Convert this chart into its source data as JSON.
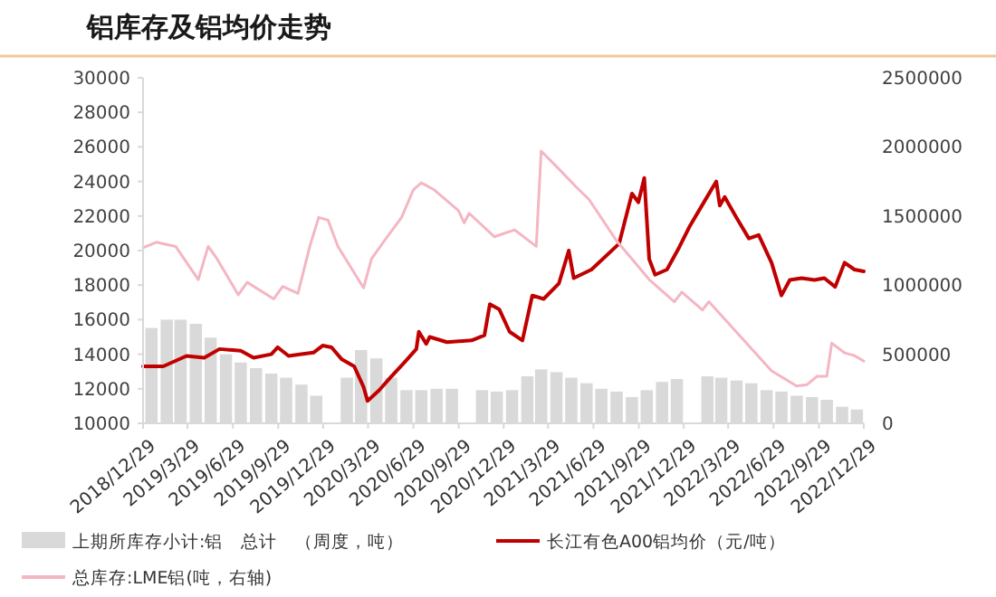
{
  "chart_data": {
    "type": "line",
    "title": "铝库存及铝均价走势",
    "xlim": [
      "2018-12-29",
      "2022-12-29"
    ],
    "xticks": [
      {
        "value": "2018-12-29",
        "label": "2018/12/29"
      },
      {
        "value": "2019-03-29",
        "label": "2019/3/29"
      },
      {
        "value": "2019-06-29",
        "label": "2019/6/29"
      },
      {
        "value": "2019-09-29",
        "label": "2019/9/29"
      },
      {
        "value": "2019-12-29",
        "label": "2019/12/29"
      },
      {
        "value": "2020-03-29",
        "label": "2020/3/29"
      },
      {
        "value": "2020-06-29",
        "label": "2020/6/29"
      },
      {
        "value": "2020-09-29",
        "label": "2020/9/29"
      },
      {
        "value": "2020-12-29",
        "label": "2020/12/29"
      },
      {
        "value": "2021-03-29",
        "label": "2021/3/29"
      },
      {
        "value": "2021-06-29",
        "label": "2021/6/29"
      },
      {
        "value": "2021-09-29",
        "label": "2021/9/29"
      },
      {
        "value": "2021-12-29",
        "label": "2021/12/29"
      },
      {
        "value": "2022-03-29",
        "label": "2022/3/29"
      },
      {
        "value": "2022-06-29",
        "label": "2022/6/29"
      },
      {
        "value": "2022-09-29",
        "label": "2022/9/29"
      },
      {
        "value": "2022-12-29",
        "label": "2022/12/29"
      }
    ],
    "ylim": [
      10000,
      30000
    ],
    "yticks": [
      10000,
      12000,
      14000,
      16000,
      18000,
      20000,
      22000,
      24000,
      26000,
      28000,
      30000
    ],
    "y2lim": [
      0,
      2500000
    ],
    "y2ticks": [
      0,
      500000,
      1000000,
      1500000,
      2000000,
      2500000
    ],
    "grid": false,
    "legend": "bottom",
    "series": [
      {
        "name": "上期所库存小计:铝　总计　（周度，吨）",
        "type": "bar",
        "axis": "y2",
        "color": "#d9d9d9",
        "x": [
          "2019-01-15",
          "2019-02-15",
          "2019-03-15",
          "2019-04-15",
          "2019-05-15",
          "2019-06-15",
          "2019-07-15",
          "2019-08-15",
          "2019-09-15",
          "2019-10-15",
          "2019-11-15",
          "2019-12-15",
          "2020-01-15",
          "2020-02-15",
          "2020-03-15",
          "2020-04-15",
          "2020-05-15",
          "2020-06-15",
          "2020-07-15",
          "2020-08-15",
          "2020-09-15",
          "2020-10-15",
          "2020-11-15",
          "2020-12-15",
          "2021-01-15",
          "2021-02-15",
          "2021-03-15",
          "2021-04-15",
          "2021-05-15",
          "2021-06-15",
          "2021-07-15",
          "2021-08-15",
          "2021-09-15",
          "2021-10-15",
          "2021-11-15",
          "2021-12-15",
          "2022-01-15",
          "2022-02-15",
          "2022-03-15",
          "2022-04-15",
          "2022-05-15",
          "2022-06-15",
          "2022-07-15",
          "2022-08-15",
          "2022-09-15",
          "2022-10-15",
          "2022-11-15",
          "2022-12-15"
        ],
        "values": [
          690000,
          750000,
          750000,
          720000,
          620000,
          500000,
          440000,
          400000,
          360000,
          330000,
          280000,
          200000,
          null,
          330000,
          530000,
          470000,
          330000,
          240000,
          240000,
          250000,
          250000,
          null,
          240000,
          230000,
          240000,
          340000,
          390000,
          370000,
          330000,
          290000,
          250000,
          230000,
          190000,
          240000,
          300000,
          320000,
          null,
          340000,
          330000,
          310000,
          290000,
          240000,
          230000,
          200000,
          190000,
          170000,
          120000,
          100000
        ]
      },
      {
        "name": "长江有色A00铝均价（元/吨）",
        "color": "#c00000",
        "x": [
          "2018-12-29",
          "2019-02-08",
          "2019-03-27",
          "2019-05-02",
          "2019-06-02",
          "2019-07-15",
          "2019-08-10",
          "2019-09-15",
          "2019-09-28",
          "2019-10-20",
          "2019-11-15",
          "2019-12-10",
          "2019-12-28",
          "2020-01-15",
          "2020-02-05",
          "2020-03-01",
          "2020-03-20",
          "2020-03-28",
          "2020-04-20",
          "2020-05-15",
          "2020-06-10",
          "2020-07-05",
          "2020-07-10",
          "2020-07-25",
          "2020-08-01",
          "2020-09-05",
          "2020-10-25",
          "2020-11-20",
          "2020-12-01",
          "2020-12-20",
          "2021-01-10",
          "2021-02-05",
          "2021-02-25",
          "2021-03-20",
          "2021-04-20",
          "2021-05-10",
          "2021-05-20",
          "2021-06-25",
          "2021-08-20",
          "2021-09-15",
          "2021-09-28",
          "2021-10-10",
          "2021-10-20",
          "2021-11-01",
          "2021-11-25",
          "2021-12-20",
          "2022-01-10",
          "2022-02-10",
          "2022-03-05",
          "2022-03-12",
          "2022-03-22",
          "2022-04-15",
          "2022-05-10",
          "2022-05-30",
          "2022-06-25",
          "2022-07-15",
          "2022-08-01",
          "2022-08-25",
          "2022-09-20",
          "2022-10-10",
          "2022-11-01",
          "2022-11-20",
          "2022-12-10",
          "2022-12-29"
        ],
        "values": [
          13300,
          13300,
          13900,
          13800,
          14300,
          14200,
          13800,
          14000,
          14400,
          13900,
          14000,
          14100,
          14500,
          14400,
          13700,
          13300,
          12100,
          11300,
          11900,
          12700,
          13500,
          14300,
          15300,
          14600,
          15000,
          14700,
          14800,
          15100,
          16900,
          16600,
          15300,
          14800,
          17400,
          17200,
          18100,
          20000,
          18400,
          18900,
          20400,
          23300,
          22800,
          24200,
          19500,
          18600,
          18900,
          20200,
          21400,
          22900,
          24000,
          22600,
          23100,
          21900,
          20700,
          20900,
          19300,
          17400,
          18300,
          18400,
          18300,
          18400,
          17900,
          19300,
          18900,
          18800
        ]
      },
      {
        "name": "总库存:LME铝(吨，右轴)",
        "axis": "y2",
        "color": "#f4b6c2",
        "x": [
          "2018-12-29",
          "2019-01-25",
          "2019-03-05",
          "2019-04-20",
          "2019-05-10",
          "2019-05-28",
          "2019-07-10",
          "2019-07-28",
          "2019-09-20",
          "2019-10-08",
          "2019-11-08",
          "2019-12-02",
          "2019-12-20",
          "2020-01-08",
          "2020-01-28",
          "2020-03-20",
          "2020-04-05",
          "2020-05-05",
          "2020-06-05",
          "2020-06-29",
          "2020-07-15",
          "2020-08-10",
          "2020-09-28",
          "2020-10-10",
          "2020-10-20",
          "2020-12-10",
          "2021-01-20",
          "2021-03-05",
          "2021-03-15",
          "2021-04-20",
          "2021-05-25",
          "2021-06-20",
          "2021-08-15",
          "2021-10-20",
          "2021-12-10",
          "2021-12-25",
          "2022-02-05",
          "2022-02-18",
          "2022-04-25",
          "2022-06-25",
          "2022-08-15",
          "2022-09-05",
          "2022-09-25",
          "2022-10-15",
          "2022-10-25",
          "2022-11-20",
          "2022-12-10",
          "2022-12-29"
        ],
        "values": [
          1270000,
          1310000,
          1280000,
          1040000,
          1280000,
          1190000,
          930000,
          1020000,
          900000,
          990000,
          940000,
          1280000,
          1490000,
          1470000,
          1280000,
          980000,
          1190000,
          1340000,
          1490000,
          1690000,
          1740000,
          1690000,
          1540000,
          1450000,
          1520000,
          1350000,
          1400000,
          1280000,
          1970000,
          1840000,
          1710000,
          1620000,
          1320000,
          1040000,
          880000,
          950000,
          820000,
          880000,
          620000,
          380000,
          270000,
          280000,
          340000,
          340000,
          580000,
          510000,
          490000,
          450000
        ]
      }
    ]
  }
}
